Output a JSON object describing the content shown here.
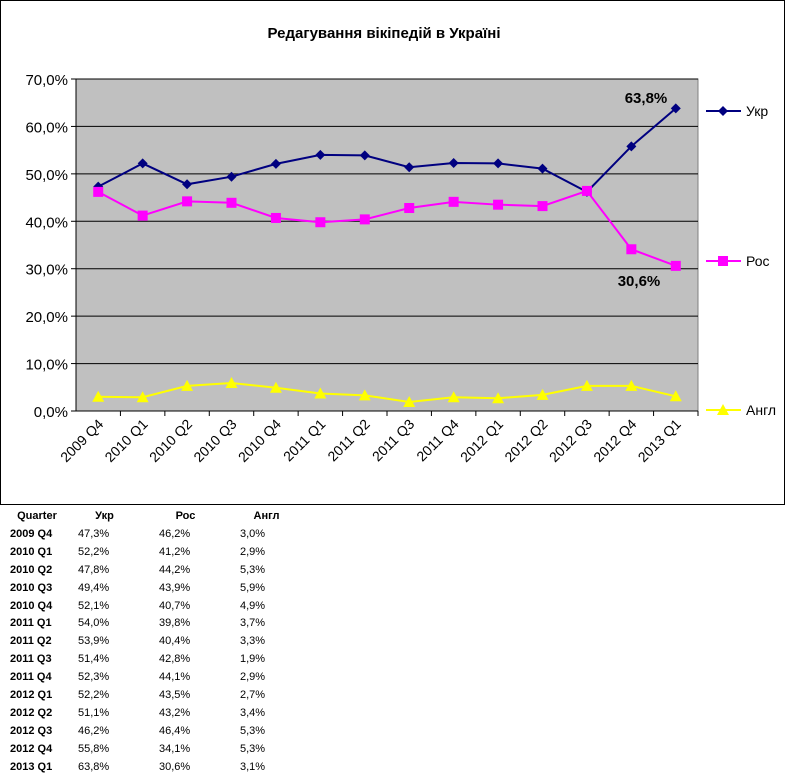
{
  "chart_data": {
    "type": "line",
    "title": "Редагування вікіпедій в Україні",
    "categories": [
      "2009 Q4",
      "2010 Q1",
      "2010 Q2",
      "2010 Q3",
      "2010 Q4",
      "2011 Q1",
      "2011 Q2",
      "2011 Q3",
      "2011 Q4",
      "2012 Q1",
      "2012 Q2",
      "2012 Q3",
      "2012 Q4",
      "2013 Q1"
    ],
    "series": [
      {
        "name": "Укр",
        "color": "#000080",
        "marker": "diamond",
        "values": [
          47.3,
          52.2,
          47.8,
          49.4,
          52.1,
          54.0,
          53.9,
          51.4,
          52.3,
          52.2,
          51.1,
          46.2,
          55.8,
          63.8
        ]
      },
      {
        "name": "Рос",
        "color": "#FF00FF",
        "marker": "square",
        "values": [
          46.2,
          41.2,
          44.2,
          43.9,
          40.7,
          39.8,
          40.4,
          42.8,
          44.1,
          43.5,
          43.2,
          46.4,
          34.1,
          30.6
        ]
      },
      {
        "name": "Англ",
        "color": "#FFFF00",
        "marker": "triangle",
        "values": [
          3.0,
          2.9,
          5.3,
          5.9,
          4.9,
          3.7,
          3.3,
          1.9,
          2.9,
          2.7,
          3.4,
          5.3,
          5.3,
          3.1
        ]
      }
    ],
    "ylim": [
      0,
      70
    ],
    "yticks": [
      "0,0%",
      "10,0%",
      "20,0%",
      "30,0%",
      "40,0%",
      "50,0%",
      "60,0%",
      "70,0%"
    ],
    "annotations": [
      "63,8%",
      "30,6%"
    ],
    "legend": "right",
    "grid": true,
    "plot_bg": "#C0C0C0"
  },
  "table": {
    "headers": [
      "Quarter",
      "Укр",
      "Рос",
      "Англ"
    ],
    "rows": [
      [
        "2009 Q4",
        "47,3%",
        "46,2%",
        "3,0%"
      ],
      [
        "2010 Q1",
        "52,2%",
        "41,2%",
        "2,9%"
      ],
      [
        "2010 Q2",
        "47,8%",
        "44,2%",
        "5,3%"
      ],
      [
        "2010 Q3",
        "49,4%",
        "43,9%",
        "5,9%"
      ],
      [
        "2010 Q4",
        "52,1%",
        "40,7%",
        "4,9%"
      ],
      [
        "2011 Q1",
        "54,0%",
        "39,8%",
        "3,7%"
      ],
      [
        "2011 Q2",
        "53,9%",
        "40,4%",
        "3,3%"
      ],
      [
        "2011 Q3",
        "51,4%",
        "42,8%",
        "1,9%"
      ],
      [
        "2011 Q4",
        "52,3%",
        "44,1%",
        "2,9%"
      ],
      [
        "2012 Q1",
        "52,2%",
        "43,5%",
        "2,7%"
      ],
      [
        "2012 Q2",
        "51,1%",
        "43,2%",
        "3,4%"
      ],
      [
        "2012 Q3",
        "46,2%",
        "46,4%",
        "5,3%"
      ],
      [
        "2012 Q4",
        "55,8%",
        "34,1%",
        "5,3%"
      ],
      [
        "2013 Q1",
        "63,8%",
        "30,6%",
        "3,1%"
      ]
    ]
  }
}
